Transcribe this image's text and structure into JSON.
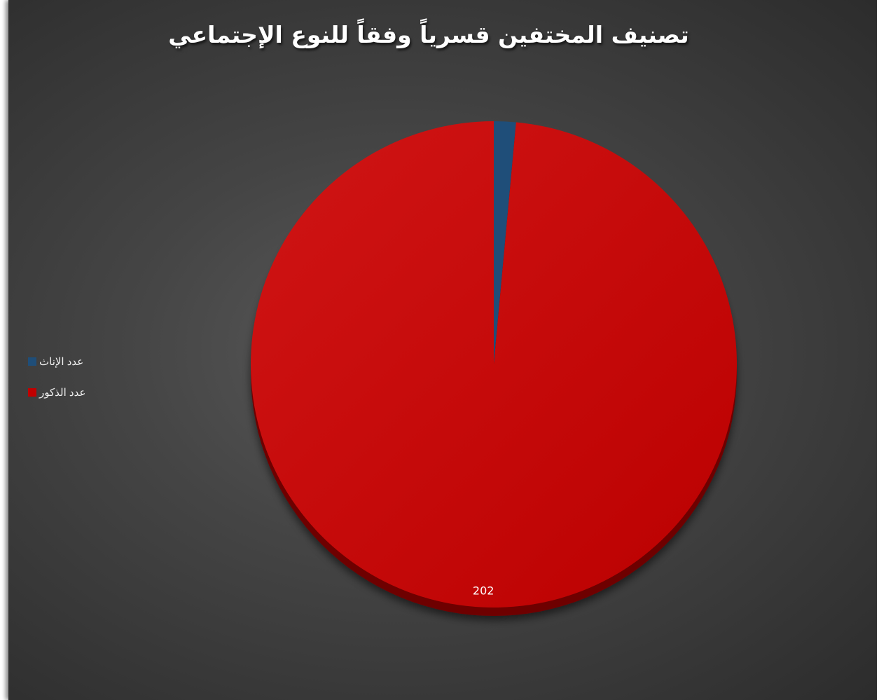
{
  "chart_data": {
    "type": "pie",
    "title": "تصنيف المختفين قسرياً وفقاً للنوع الإجتماعي",
    "slices": [
      {
        "name": "عدد الإناث",
        "value": 3,
        "color": "#1f4e79",
        "label": ""
      },
      {
        "name": "عدد الذكور",
        "value": 202,
        "color": "#c00000",
        "label": "202"
      }
    ],
    "legend_position": "left",
    "three_d": true
  }
}
